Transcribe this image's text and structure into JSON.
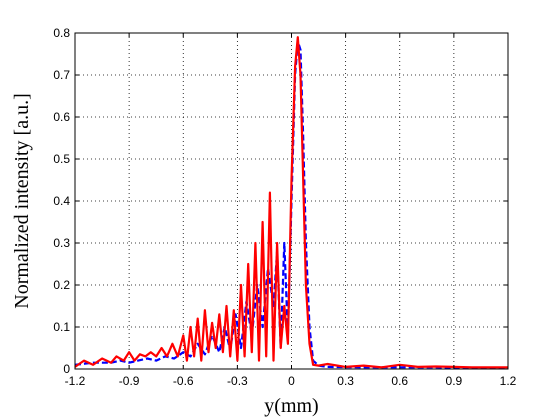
{
  "chart_data": {
    "type": "line",
    "title": "",
    "xlabel": "y(mm)",
    "ylabel": "Normalized intensity  [a.u.]",
    "xlim": [
      -1.2,
      1.2
    ],
    "ylim": [
      0,
      0.8
    ],
    "xticks": [
      -1.2,
      -0.9,
      -0.6,
      -0.3,
      0,
      0.3,
      0.6,
      0.9,
      1.2
    ],
    "xtick_labels": [
      "-1.2",
      "-0.9",
      "-0.6",
      "-0.3",
      "0",
      "0.3",
      "0.6",
      "0.9",
      "1.2"
    ],
    "yticks": [
      0,
      0.1,
      0.2,
      0.3,
      0.4,
      0.5,
      0.6,
      0.7,
      0.8
    ],
    "ytick_labels": [
      "0",
      "0.1",
      "0.2",
      "0.3",
      "0.4",
      "0.5",
      "0.6",
      "0.7",
      "0.8"
    ],
    "grid": true,
    "grid_style": "dotted",
    "legend": "none",
    "series": [
      {
        "style": "dashed",
        "color": "#0000ff",
        "x": [
          -1.2,
          -1.1,
          -1.0,
          -0.95,
          -0.9,
          -0.85,
          -0.8,
          -0.75,
          -0.7,
          -0.65,
          -0.6,
          -0.56,
          -0.52,
          -0.48,
          -0.44,
          -0.4,
          -0.37,
          -0.34,
          -0.31,
          -0.28,
          -0.25,
          -0.22,
          -0.19,
          -0.16,
          -0.13,
          -0.1,
          -0.08,
          -0.06,
          -0.04,
          -0.02,
          0.0,
          0.02,
          0.035,
          0.05,
          0.065,
          0.08,
          0.1,
          0.12,
          0.15,
          0.2,
          0.4,
          0.6,
          0.8,
          1.0,
          1.2
        ],
        "y": [
          0.01,
          0.015,
          0.015,
          0.02,
          0.015,
          0.02,
          0.025,
          0.02,
          0.03,
          0.025,
          0.04,
          0.03,
          0.06,
          0.035,
          0.08,
          0.04,
          0.1,
          0.045,
          0.13,
          0.05,
          0.16,
          0.08,
          0.2,
          0.1,
          0.24,
          0.15,
          0.28,
          0.05,
          0.3,
          0.08,
          0.4,
          0.7,
          0.78,
          0.76,
          0.55,
          0.3,
          0.1,
          0.02,
          0.008,
          0.005,
          0.004,
          0.004,
          0.004,
          0.003,
          0.003
        ]
      },
      {
        "style": "solid",
        "color": "#ff0000",
        "x": [
          -1.2,
          -1.15,
          -1.1,
          -1.05,
          -1.0,
          -0.97,
          -0.93,
          -0.9,
          -0.87,
          -0.84,
          -0.81,
          -0.78,
          -0.75,
          -0.72,
          -0.69,
          -0.66,
          -0.63,
          -0.6,
          -0.58,
          -0.56,
          -0.54,
          -0.52,
          -0.5,
          -0.48,
          -0.46,
          -0.44,
          -0.42,
          -0.4,
          -0.38,
          -0.36,
          -0.34,
          -0.32,
          -0.3,
          -0.28,
          -0.26,
          -0.24,
          -0.22,
          -0.2,
          -0.18,
          -0.16,
          -0.14,
          -0.12,
          -0.1,
          -0.08,
          -0.06,
          -0.04,
          -0.02,
          0.0,
          0.02,
          0.035,
          0.05,
          0.065,
          0.08,
          0.1,
          0.12,
          0.15,
          0.2,
          0.3,
          0.4,
          0.5,
          0.6,
          0.7,
          0.8,
          0.9,
          1.0,
          1.1,
          1.2
        ],
        "y": [
          0.005,
          0.02,
          0.01,
          0.025,
          0.015,
          0.03,
          0.02,
          0.04,
          0.02,
          0.035,
          0.03,
          0.04,
          0.03,
          0.05,
          0.03,
          0.06,
          0.03,
          0.08,
          0.02,
          0.1,
          0.03,
          0.12,
          0.02,
          0.14,
          0.04,
          0.11,
          0.05,
          0.13,
          0.04,
          0.15,
          0.03,
          0.14,
          0.02,
          0.2,
          0.03,
          0.25,
          0.04,
          0.3,
          0.02,
          0.35,
          0.03,
          0.42,
          0.02,
          0.3,
          0.05,
          0.15,
          0.06,
          0.45,
          0.72,
          0.79,
          0.7,
          0.45,
          0.2,
          0.06,
          0.01,
          0.008,
          0.012,
          0.005,
          0.008,
          0.004,
          0.01,
          0.005,
          0.006,
          0.005,
          0.004,
          0.004,
          0.004
        ]
      }
    ]
  }
}
